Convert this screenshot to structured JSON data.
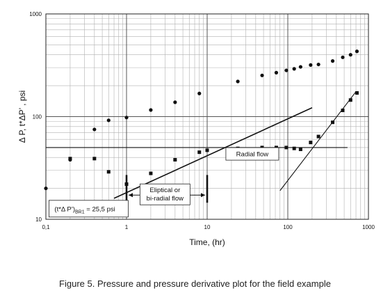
{
  "chart_data": {
    "type": "scatter",
    "x_scale": "log",
    "y_scale": "log",
    "xlim": [
      0.1,
      1000
    ],
    "ylim": [
      10,
      1000
    ],
    "xlabel": "Time, (hr)",
    "ylabel": "Δ P, t*ΔP’ , psi",
    "x_ticks": [
      {
        "value": 0.1,
        "label": "0,1"
      },
      {
        "value": 1,
        "label": "1"
      },
      {
        "value": 10,
        "label": "10"
      },
      {
        "value": 100,
        "label": "100"
      },
      {
        "value": 1000,
        "label": "1000"
      }
    ],
    "y_ticks": [
      {
        "value": 10,
        "label": "10"
      },
      {
        "value": 100,
        "label": "100"
      },
      {
        "value": 1000,
        "label": "1000"
      }
    ],
    "grid": true,
    "series": [
      {
        "marker": "circle",
        "color": "#111111",
        "points": [
          [
            0.1,
            20
          ],
          [
            0.2,
            38
          ],
          [
            0.4,
            75
          ],
          [
            0.6,
            92
          ],
          [
            1.0,
            98
          ],
          [
            2.0,
            116
          ],
          [
            4.0,
            138
          ],
          [
            8.0,
            168
          ],
          [
            24,
            220
          ],
          [
            48,
            252
          ],
          [
            72,
            268
          ],
          [
            96,
            282
          ],
          [
            120,
            292
          ],
          [
            144,
            305
          ],
          [
            192,
            318
          ],
          [
            240,
            322
          ],
          [
            360,
            348
          ],
          [
            480,
            378
          ],
          [
            600,
            400
          ],
          [
            720,
            432
          ]
        ]
      },
      {
        "marker": "square",
        "color": "#111111",
        "points": [
          [
            0.2,
            39
          ],
          [
            0.4,
            39
          ],
          [
            0.6,
            29
          ],
          [
            1.0,
            22
          ],
          [
            2.0,
            28
          ],
          [
            4.0,
            38
          ],
          [
            8.0,
            45
          ],
          [
            10,
            47
          ],
          [
            24,
            49
          ],
          [
            48,
            50
          ],
          [
            72,
            50
          ],
          [
            96,
            50
          ],
          [
            120,
            49
          ],
          [
            144,
            48
          ],
          [
            192,
            56
          ],
          [
            240,
            64
          ],
          [
            360,
            88
          ],
          [
            480,
            115
          ],
          [
            600,
            145
          ],
          [
            720,
            170
          ]
        ]
      }
    ],
    "lines": [
      {
        "style": "solid",
        "from": [
          0.1,
          50
        ],
        "to": [
          550,
          50
        ]
      },
      {
        "style": "solid",
        "from": [
          0.7,
          16
        ],
        "to": [
          200,
          122
        ]
      },
      {
        "style": "solid",
        "from": [
          80,
          19
        ],
        "to": [
          700,
          175
        ]
      }
    ],
    "annotations": {
      "radial_flow": {
        "text": "Radial flow",
        "at": [
          20,
          42
        ]
      },
      "ellipitical": {
        "text_line1": "Eliptical or",
        "text_line2": "bi-radial flow",
        "at": [
          3,
          19.5
        ]
      },
      "derivative_value": {
        "prefix": "(t*Δ P’)",
        "subscript": "BR1",
        "suffix": " = 25,5 psi",
        "at": [
          0.15,
          13.5
        ]
      },
      "markers_x": [
        1.0,
        10.0
      ]
    }
  },
  "caption": "Figure 5. Pressure and pressure derivative plot for the field example"
}
